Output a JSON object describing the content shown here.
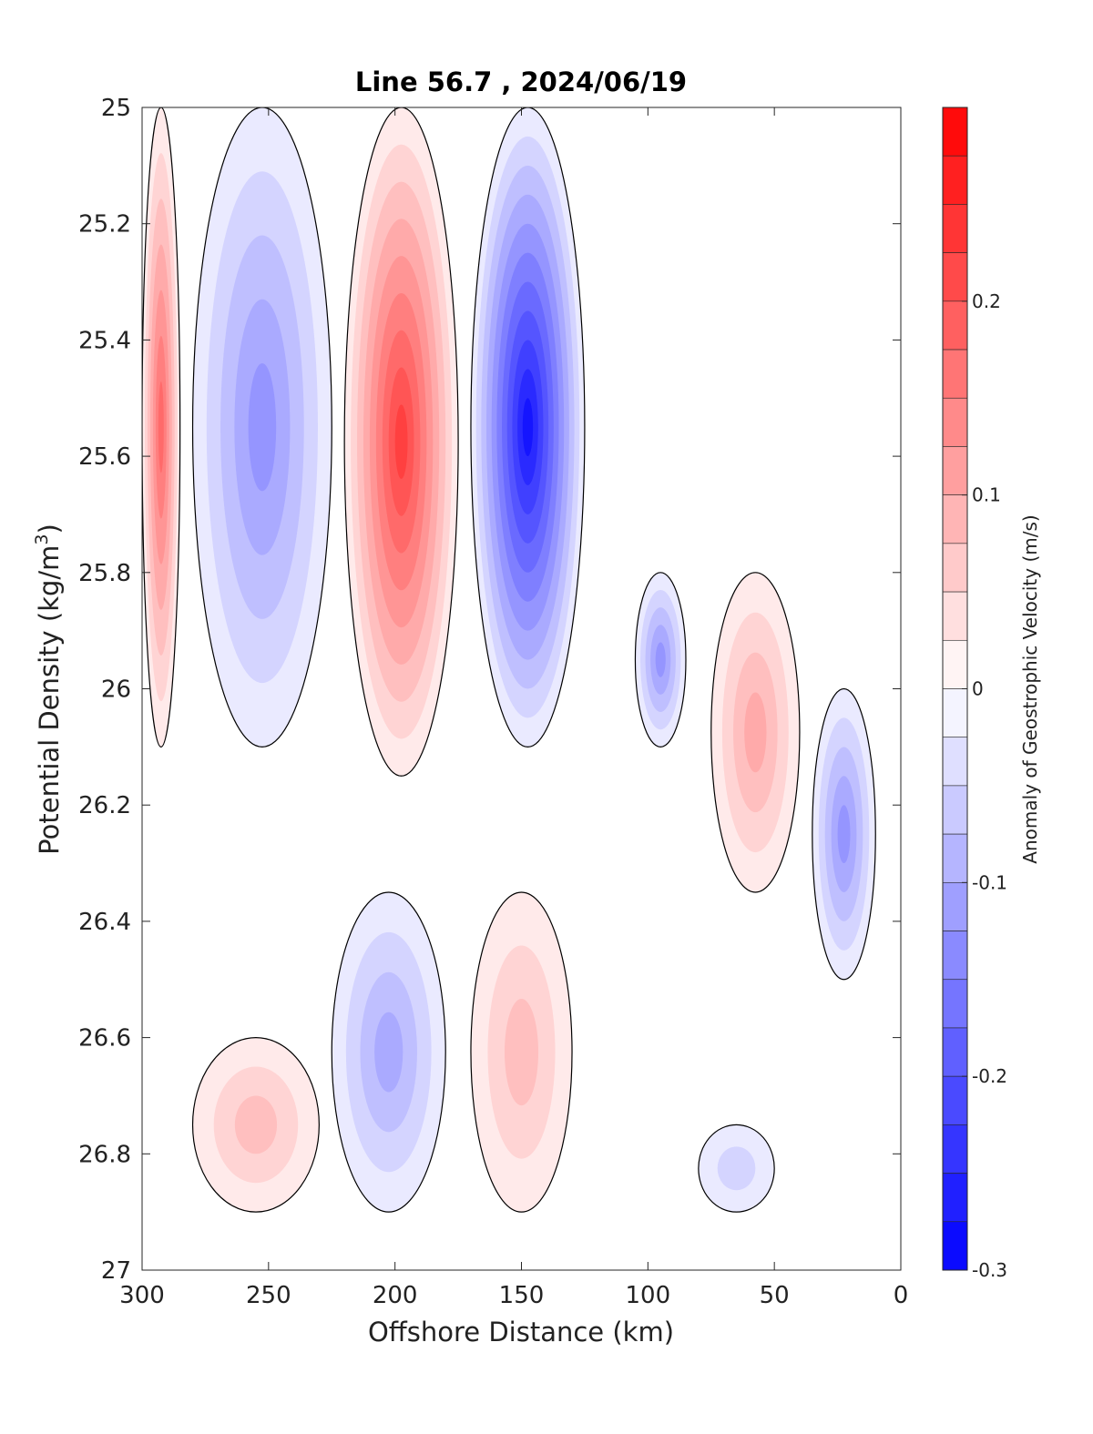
{
  "chart_data": {
    "type": "contourf",
    "title": "Line 56.7 , 2024/06/19",
    "xlabel": "Offshore Distance (km)",
    "ylabel": "Potential Density (kg/m",
    "ylabel_superscript": "3",
    "ylabel_suffix": ")",
    "xlim": [
      300,
      0
    ],
    "ylim": [
      25,
      27
    ],
    "x_reversed": true,
    "y_reversed": true,
    "xticks": [
      300,
      250,
      200,
      150,
      100,
      50,
      0
    ],
    "yticks": [
      25,
      25.2,
      25.4,
      25.6,
      25.8,
      26,
      26.2,
      26.4,
      26.6,
      26.8,
      27
    ],
    "xtick_labels": [
      "300",
      "250",
      "200",
      "150",
      "100",
      "50",
      "0"
    ],
    "ytick_labels": [
      "25",
      "25.2",
      "25.4",
      "25.6",
      "25.8",
      "26",
      "26.2",
      "26.4",
      "26.6",
      "26.8",
      "27"
    ],
    "grid": false,
    "colorbar": {
      "label": "Anomaly of Geostrophic Velocity (m/s)",
      "range": [
        -0.3,
        0.3
      ],
      "levels_step": 0.025,
      "tick_values": [
        0.2,
        0.1,
        0,
        -0.1,
        -0.2,
        -0.3
      ],
      "tick_labels": [
        "0.2",
        "0.1",
        "0",
        "-0.1",
        "-0.2",
        "-0.3"
      ],
      "position": "right",
      "colormap": "blue-white-red"
    },
    "colors": {
      "max": "#ff0000",
      "zero": "#ffffff",
      "min": "#0000ff",
      "contour": "#000000"
    },
    "features": [
      {
        "name": "red core",
        "x_range": [
          300,
          285
        ],
        "density_range": [
          25,
          26.1
        ],
        "peak": 0.175
      },
      {
        "name": "blue core",
        "x_range": [
          280,
          225
        ],
        "density_range": [
          25,
          26.1
        ],
        "peak": -0.125
      },
      {
        "name": "red core",
        "x_range": [
          220,
          175
        ],
        "density_range": [
          25,
          26.15
        ],
        "peak": 0.225
      },
      {
        "name": "blue core",
        "x_range": [
          170,
          125
        ],
        "density_range": [
          25,
          26.1
        ],
        "peak": -0.275
      },
      {
        "name": "blue patch",
        "x_range": [
          105,
          85
        ],
        "density_range": [
          25.8,
          26.1
        ],
        "peak": -0.125
      },
      {
        "name": "red patch",
        "x_range": [
          75,
          40
        ],
        "density_range": [
          25.8,
          26.35
        ],
        "peak": 0.1
      },
      {
        "name": "blue patch",
        "x_range": [
          35,
          10
        ],
        "density_range": [
          26,
          26.5
        ],
        "peak": -0.125
      },
      {
        "name": "red deep",
        "x_range": [
          280,
          230
        ],
        "density_range": [
          26.6,
          26.9
        ],
        "peak": 0.075
      },
      {
        "name": "blue deep",
        "x_range": [
          225,
          180
        ],
        "density_range": [
          26.35,
          26.9
        ],
        "peak": -0.1
      },
      {
        "name": "red deep",
        "x_range": [
          170,
          130
        ],
        "density_range": [
          26.35,
          26.9
        ],
        "peak": 0.075
      },
      {
        "name": "blue deep",
        "x_range": [
          80,
          50
        ],
        "density_range": [
          26.75,
          26.9
        ],
        "peak": -0.05
      }
    ]
  }
}
